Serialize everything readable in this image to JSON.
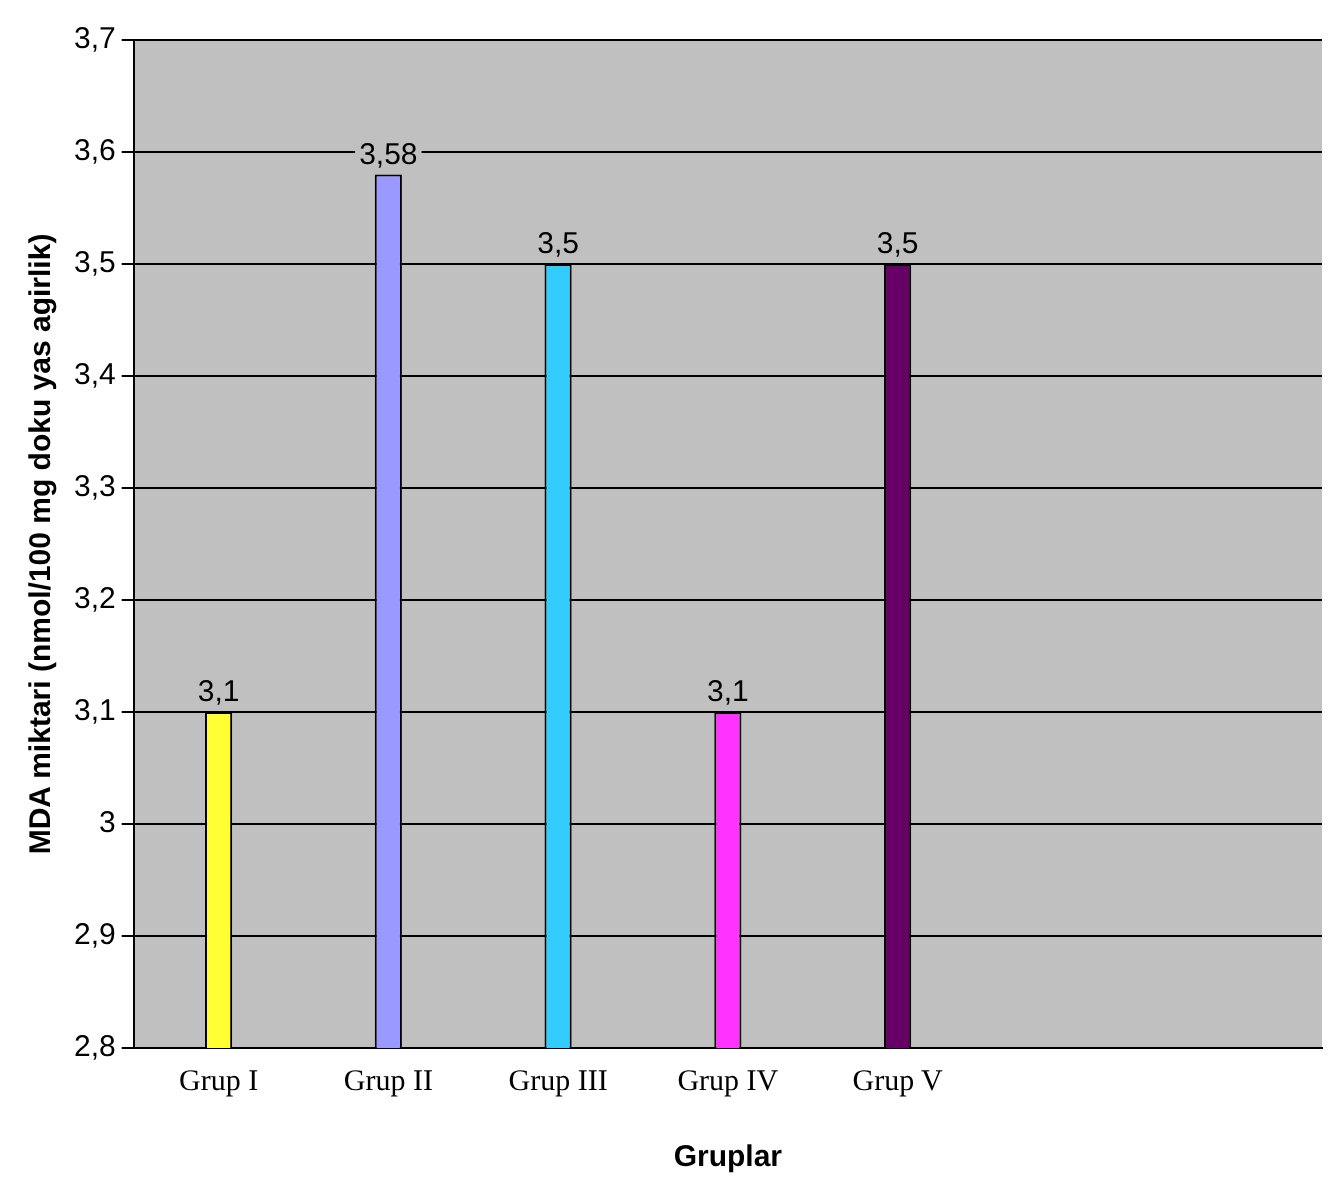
{
  "chart_data": {
    "type": "bar",
    "xlabel": "Gruplar",
    "ylabel": "MDA miktari (nmol/100 mg doku yas agirlik)",
    "categories": [
      "Grup I",
      "Grup II",
      "Grup III",
      "Grup IV",
      "Grup V",
      null,
      null
    ],
    "values": [
      3.1,
      3.58,
      3.5,
      3.1,
      3.5,
      null,
      null
    ],
    "colors": [
      "#ffff33",
      "#9999ff",
      "#33ccff",
      "#ff33ff",
      "#660066",
      "#000000",
      "#000000"
    ],
    "value_labels": [
      "3,1",
      "3,58",
      "3,5",
      "3,1",
      "3,5",
      null,
      null
    ],
    "ylim": [
      2.8,
      3.7
    ],
    "yticks": [
      {
        "value": 2.8,
        "label": "2,8"
      },
      {
        "value": 2.9,
        "label": "2,9"
      },
      {
        "value": 3,
        "label": "3"
      },
      {
        "value": 3.1,
        "label": "3,1"
      },
      {
        "value": 3.2,
        "label": "3,2"
      },
      {
        "value": 3.3,
        "label": "3,3"
      },
      {
        "value": 3.4,
        "label": "3,4"
      },
      {
        "value": 3.5,
        "label": "3,5"
      },
      {
        "value": 3.6,
        "label": "3,6"
      },
      {
        "value": 3.7,
        "label": "3,7"
      }
    ],
    "grid": "y",
    "legend": false
  }
}
